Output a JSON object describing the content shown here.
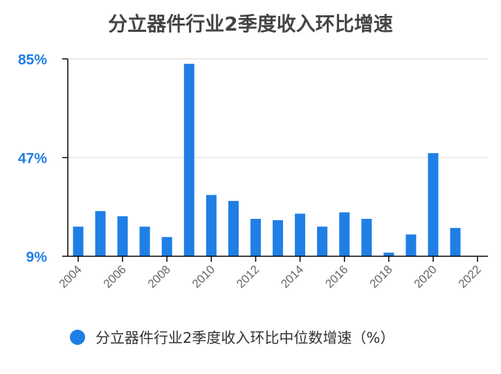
{
  "chart_data": {
    "type": "bar",
    "title": "分立器件行业2季度收入环比增速",
    "xlabel": "",
    "ylabel": "",
    "categories": [
      "2004",
      "2005",
      "2006",
      "2007",
      "2008",
      "2009",
      "2010",
      "2011",
      "2012",
      "2013",
      "2014",
      "2015",
      "2016",
      "2017",
      "2018",
      "2019",
      "2020",
      "2021",
      "2022"
    ],
    "x_tick_labels": [
      "2004",
      "2006",
      "2008",
      "2010",
      "2012",
      "2014",
      "2016",
      "2018",
      "2020",
      "2022"
    ],
    "series": [
      {
        "name": "分立器件行业2季度收入环比中位数增速（%）",
        "color": "#1f7fe5",
        "values": [
          20.4,
          26.4,
          24.4,
          20.4,
          16.4,
          83.1,
          32.6,
          30.3,
          23.4,
          22.9,
          25.4,
          20.4,
          25.9,
          23.4,
          10.4,
          17.4,
          48.7,
          19.9,
          null
        ]
      }
    ],
    "ylim": [
      9,
      85
    ],
    "y_ticks": [
      {
        "value": 9,
        "label": "9%"
      },
      {
        "value": 47,
        "label": "47%"
      },
      {
        "value": 85,
        "label": "85%"
      }
    ],
    "grid": true,
    "legend": "bottom",
    "colors": {
      "bar": "#1f7fe5",
      "tick_label": "#1f7fe5",
      "axis": "#000000",
      "grid": "#e3e3e3"
    }
  }
}
